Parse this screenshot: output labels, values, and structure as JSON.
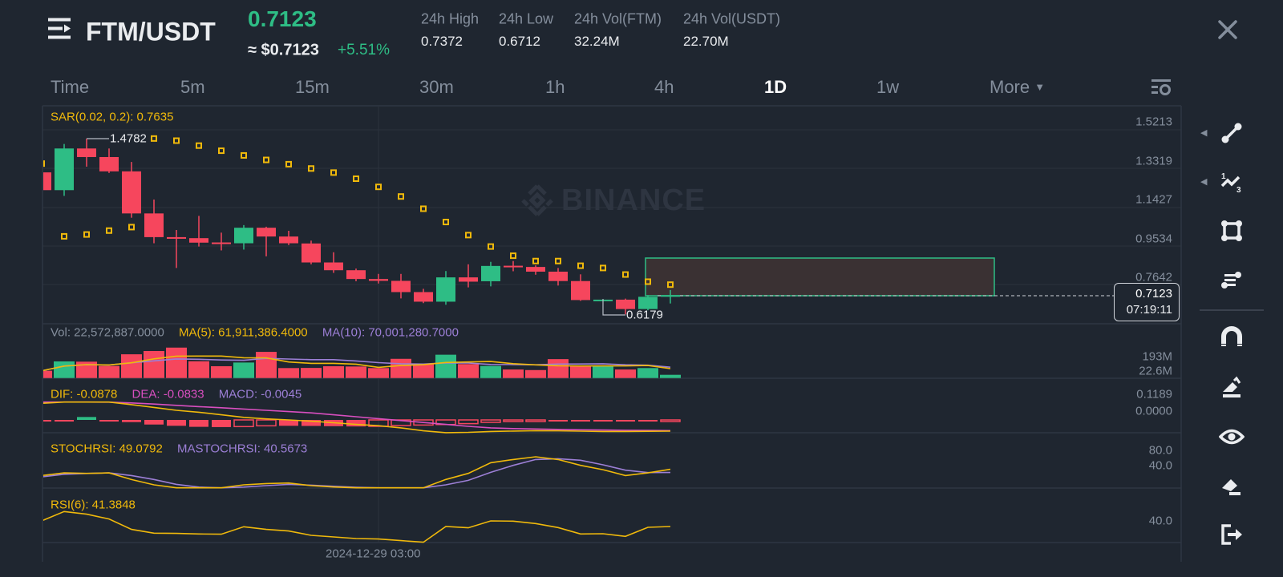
{
  "header": {
    "menu_icon": "menu-icon",
    "pair": "FTM/USDT",
    "last_price": "0.7123",
    "usd_price": "≈ $0.7123",
    "change": "+5.51%",
    "stats": [
      {
        "label": "24h High",
        "value": "0.7372"
      },
      {
        "label": "24h Low",
        "value": "0.6712"
      },
      {
        "label": "24h Vol(FTM)",
        "value": "32.24M"
      },
      {
        "label": "24h Vol(USDT)",
        "value": "22.70M"
      }
    ],
    "close_icon": "close-icon"
  },
  "intervals": {
    "items": [
      "Time",
      "5m",
      "15m",
      "30m",
      "1h",
      "4h",
      "1D",
      "1w"
    ],
    "active": "1D",
    "more": "More",
    "settings_icon": "chart-settings-icon"
  },
  "indicators": {
    "sar": "SAR(0.02, 0.2): 0.7635",
    "vol": "Vol: 22,572,887.0000",
    "ma5": "MA(5): 61,911,386.4000",
    "ma10": "MA(10): 70,001,280.7000",
    "dif": "DIF: -0.0878",
    "dea": "DEA: -0.0833",
    "macd": "MACD: -0.0045",
    "stochrsi": "STOCHRSI: 49.0792",
    "mastochrsi": "MASTOCHRSI: 40.5673",
    "rsi": "RSI(6): 41.3848"
  },
  "watermark": "BINANCE",
  "current_price_tag": {
    "price": "0.7123",
    "countdown": "07:19:11"
  },
  "toolbar": {
    "tools": [
      "trend-line-icon",
      "fib-wave-icon",
      "rectangle-icon",
      "text-note-icon",
      "magnet-icon",
      "pencil-icon",
      "eye-icon",
      "eraser-icon",
      "exit-icon"
    ]
  },
  "colors": {
    "up": "#2ebd85",
    "down": "#f6465d",
    "sar": "#f0b90b",
    "ma5": "#f0b90b",
    "ma10": "#9c7fd6",
    "dea": "#d94fc0",
    "background": "#1f2630"
  },
  "chart_data": {
    "type": "candlestick",
    "interval": "1D",
    "x_tick_label": "2024-12-29 03:00",
    "price_axis": [
      "1.5213",
      "1.3319",
      "1.1427",
      "0.9534",
      "0.7642"
    ],
    "volume_axis": [
      "193M",
      "22.6M"
    ],
    "macd_axis": [
      "0.1189",
      "0.0000"
    ],
    "stochrsi_axis": [
      "80.0",
      "40.0"
    ],
    "rsi_axis": [
      "40.0"
    ],
    "max_label": "1.4782",
    "min_label": "0.6179",
    "candles": [
      {
        "o": 1.313,
        "h": 1.34,
        "l": 1.225,
        "c": 1.226
      },
      {
        "o": 1.226,
        "h": 1.452,
        "l": 1.198,
        "c": 1.43
      },
      {
        "o": 1.43,
        "h": 1.4782,
        "l": 1.341,
        "c": 1.388
      },
      {
        "o": 1.388,
        "h": 1.43,
        "l": 1.31,
        "c": 1.318
      },
      {
        "o": 1.318,
        "h": 1.364,
        "l": 1.091,
        "c": 1.112
      },
      {
        "o": 1.112,
        "h": 1.18,
        "l": 0.966,
        "c": 0.996
      },
      {
        "o": 0.996,
        "h": 1.031,
        "l": 0.845,
        "c": 0.988
      },
      {
        "o": 0.991,
        "h": 1.1,
        "l": 0.95,
        "c": 0.969
      },
      {
        "o": 0.97,
        "h": 1.018,
        "l": 0.931,
        "c": 0.962
      },
      {
        "o": 0.966,
        "h": 1.055,
        "l": 0.935,
        "c": 1.042
      },
      {
        "o": 1.042,
        "h": 1.047,
        "l": 0.902,
        "c": 0.999
      },
      {
        "o": 0.999,
        "h": 1.027,
        "l": 0.957,
        "c": 0.966
      },
      {
        "o": 0.965,
        "h": 0.979,
        "l": 0.863,
        "c": 0.872
      },
      {
        "o": 0.872,
        "h": 0.922,
        "l": 0.821,
        "c": 0.834
      },
      {
        "o": 0.834,
        "h": 0.842,
        "l": 0.78,
        "c": 0.791
      },
      {
        "o": 0.791,
        "h": 0.816,
        "l": 0.769,
        "c": 0.782
      },
      {
        "o": 0.782,
        "h": 0.816,
        "l": 0.696,
        "c": 0.727
      },
      {
        "o": 0.727,
        "h": 0.743,
        "l": 0.673,
        "c": 0.68
      },
      {
        "o": 0.68,
        "h": 0.83,
        "l": 0.665,
        "c": 0.799
      },
      {
        "o": 0.799,
        "h": 0.863,
        "l": 0.75,
        "c": 0.778
      },
      {
        "o": 0.78,
        "h": 0.875,
        "l": 0.755,
        "c": 0.855
      },
      {
        "o": 0.856,
        "h": 0.879,
        "l": 0.829,
        "c": 0.849
      },
      {
        "o": 0.85,
        "h": 0.858,
        "l": 0.812,
        "c": 0.827
      },
      {
        "o": 0.827,
        "h": 0.845,
        "l": 0.759,
        "c": 0.781
      },
      {
        "o": 0.781,
        "h": 0.814,
        "l": 0.684,
        "c": 0.688
      },
      {
        "o": 0.688,
        "h": 0.69,
        "l": 0.686,
        "c": 0.69
      },
      {
        "o": 0.69,
        "h": 0.695,
        "l": 0.6179,
        "c": 0.644
      },
      {
        "o": 0.644,
        "h": 0.712,
        "l": 0.638,
        "c": 0.704
      },
      {
        "o": 0.704,
        "h": 0.7372,
        "l": 0.6712,
        "c": 0.7123
      }
    ],
    "sar": [
      1.356,
      0.9999,
      1.009,
      1.028,
      1.045,
      1.4787,
      1.4683,
      1.444,
      1.419,
      1.396,
      1.374,
      1.353,
      1.332,
      1.312,
      1.282,
      1.242,
      1.195,
      1.135,
      1.07,
      1.006,
      0.95,
      0.905,
      0.879,
      0.879,
      0.856,
      0.845,
      0.813,
      0.778,
      0.7635
    ],
    "volume": [
      51000000.0,
      117000000.0,
      115000000.0,
      85000000.0,
      167000000.0,
      190000000.0,
      214000000.0,
      118000000.0,
      83000000.0,
      109000000.0,
      184000000.0,
      70000000.0,
      71000000.0,
      83000000.0,
      81000000.0,
      70000000.0,
      135000000.0,
      98000000.0,
      164000000.0,
      98000000.0,
      85000000.0,
      60000000.0,
      56000000.0,
      133000000.0,
      88000000.0,
      88000000.0,
      60000000.0,
      70000000.0,
      22572887
    ],
    "dif": [
      0.13,
      0.14,
      0.14,
      0.14,
      0.12,
      0.098,
      0.075,
      0.06,
      0.04,
      0.02,
      0.008,
      0.0,
      -0.01,
      -0.022,
      -0.035,
      -0.045,
      -0.062,
      -0.085,
      -0.1,
      -0.097,
      -0.09,
      -0.087,
      -0.084,
      -0.085,
      -0.088,
      -0.09,
      -0.09,
      -0.089,
      -0.0878
    ],
    "dea": [
      0.14,
      0.14,
      0.14,
      0.139,
      0.133,
      0.124,
      0.114,
      0.104,
      0.095,
      0.085,
      0.075,
      0.065,
      0.055,
      0.04,
      0.025,
      0.01,
      -0.005,
      -0.02,
      -0.035,
      -0.05,
      -0.062,
      -0.068,
      -0.071,
      -0.074,
      -0.077,
      -0.079,
      -0.081,
      -0.082,
      -0.0833
    ],
    "macd": [
      -0.002,
      -0.004,
      0.023,
      -0.008,
      -0.017,
      -0.036,
      -0.046,
      -0.054,
      -0.056,
      -0.052,
      -0.046,
      -0.046,
      -0.047,
      -0.049,
      -0.051,
      -0.05,
      -0.044,
      -0.04,
      -0.036,
      -0.029,
      -0.019,
      -0.01,
      -0.009,
      -0.009,
      -0.009,
      -0.009,
      -0.009,
      -0.009,
      -0.0045
    ],
    "stochrsi": [
      32.6,
      39.6,
      38.2,
      39.6,
      21.9,
      7.8,
      0,
      0,
      0,
      7.8,
      11.3,
      12.7,
      5.7,
      2.1,
      0,
      0,
      0,
      0,
      22.0,
      38.2,
      66.5,
      75.0,
      82.1,
      75.0,
      59.5,
      48.1,
      32.6,
      39.6,
      49.0792
    ],
    "mastochrsi": [
      29,
      36,
      38,
      39.6,
      32.6,
      22,
      9.2,
      2,
      0,
      2,
      5.7,
      9.2,
      7,
      4,
      1.4,
      0,
      0,
      0,
      7.8,
      19.8,
      41,
      59.5,
      75,
      77,
      73,
      61,
      46.7,
      40.4,
      40.5673
    ],
    "rsi": [
      49.8,
      63.8,
      59.8,
      52.6,
      37,
      31.4,
      31,
      30.2,
      29.8,
      41,
      37,
      34.6,
      28.2,
      25.8,
      23.4,
      22.6,
      20.2,
      17.8,
      41.4,
      39.4,
      49.8,
      49.4,
      45.8,
      39.8,
      30.2,
      30.6,
      26.6,
      40.2,
      41.3848
    ]
  }
}
